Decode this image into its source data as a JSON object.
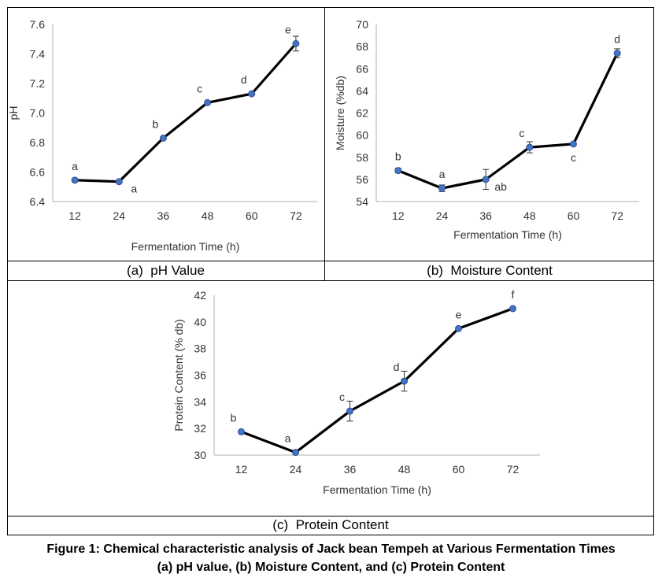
{
  "panels": {
    "a_label": "(a)  pH Value",
    "b_label": "(b)  Moisture Content",
    "c_label": "(c)  Protein Content"
  },
  "caption": {
    "line1": "Figure 1: Chemical characteristic analysis of Jack bean Tempeh at Various Fermentation Times",
    "line2": "(a) pH value, (b) Moisture Content, and (c) Protein Content"
  },
  "chart_data": [
    {
      "id": "ph",
      "type": "line",
      "title": "",
      "xlabel": "Fermentation Time (h)",
      "ylabel": "pH",
      "categories": [
        "12",
        "24",
        "36",
        "48",
        "60",
        "72"
      ],
      "ylim": [
        6.4,
        7.6
      ],
      "yticks": [
        "6.4",
        "6.6",
        "6.8",
        "7.0",
        "7.2",
        "7.4",
        "7.6"
      ],
      "values": [
        6.545,
        6.535,
        6.83,
        7.07,
        7.13,
        7.47
      ],
      "errors": [
        0.01,
        0.01,
        0.01,
        0.01,
        0.0,
        0.05
      ],
      "labels": [
        "a",
        "a",
        "b",
        "c",
        "d",
        "e"
      ],
      "label_pos": [
        "above",
        "below-right",
        "above-left",
        "above-left",
        "above-left",
        "above-left"
      ],
      "grid": false,
      "line_color": "#000000",
      "marker_color": "#4472C4"
    },
    {
      "id": "moisture",
      "type": "line",
      "title": "",
      "xlabel": "Fermentation Time (h)",
      "ylabel": "Moisture (%db)",
      "categories": [
        "12",
        "24",
        "36",
        "48",
        "60",
        "72"
      ],
      "ylim": [
        54,
        70
      ],
      "yticks": [
        "54",
        "56",
        "58",
        "60",
        "62",
        "64",
        "66",
        "68",
        "70"
      ],
      "values": [
        56.8,
        55.2,
        56.0,
        58.9,
        59.2,
        67.4
      ],
      "errors": [
        0.2,
        0.3,
        0.9,
        0.5,
        0.1,
        0.4
      ],
      "labels": [
        "b",
        "a",
        "ab",
        "c",
        "c",
        "d"
      ],
      "label_pos": [
        "above",
        "above",
        "below-right",
        "above-left",
        "below",
        "above"
      ],
      "grid": false,
      "line_color": "#000000",
      "marker_color": "#4472C4"
    },
    {
      "id": "protein",
      "type": "line",
      "title": "",
      "xlabel": "Fermentation Time (h)",
      "ylabel": "Protein Content (% db)",
      "categories": [
        "12",
        "24",
        "36",
        "48",
        "60",
        "72"
      ],
      "ylim": [
        30,
        42
      ],
      "yticks": [
        "30",
        "32",
        "34",
        "36",
        "38",
        "40",
        "42"
      ],
      "values": [
        31.75,
        30.2,
        33.3,
        35.55,
        39.5,
        41.0
      ],
      "errors": [
        0.05,
        0.05,
        0.75,
        0.75,
        0.05,
        0.05
      ],
      "labels": [
        "b",
        "a",
        "c",
        "d",
        "e",
        "f"
      ],
      "label_pos": [
        "above-left",
        "above-left",
        "above-left",
        "above-left",
        "above",
        "above"
      ],
      "grid": false,
      "line_color": "#000000",
      "marker_color": "#4472C4"
    }
  ]
}
